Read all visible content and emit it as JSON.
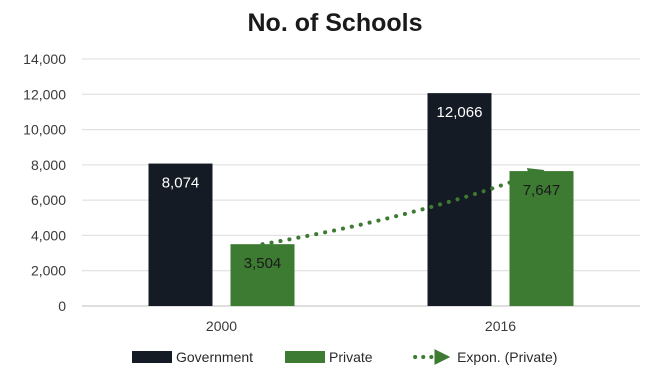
{
  "chart_data": {
    "type": "bar",
    "title": "No. of Schools",
    "categories": [
      "2000",
      "2016"
    ],
    "series": [
      {
        "name": "Government",
        "values": [
          8074,
          12066
        ],
        "labels": [
          "8,074",
          "12,066"
        ],
        "color": "#141b24",
        "label_color": "#ffffff"
      },
      {
        "name": "Private",
        "values": [
          3504,
          7647
        ],
        "labels": [
          "3,504",
          "7,647"
        ],
        "color": "#3d7a32",
        "label_color": "#1a1a1a"
      }
    ],
    "trendline": {
      "name": "Expon. (Private)",
      "type": "exponential",
      "of_series": "Private",
      "color": "#3d7a32"
    },
    "ylim": [
      0,
      14000
    ],
    "yticks": [
      0,
      2000,
      4000,
      6000,
      8000,
      10000,
      12000,
      14000
    ],
    "ytick_labels": [
      "0",
      "2,000",
      "4,000",
      "6,000",
      "8,000",
      "10,000",
      "12,000",
      "14,000"
    ],
    "grid": true,
    "legend_position": "bottom"
  }
}
